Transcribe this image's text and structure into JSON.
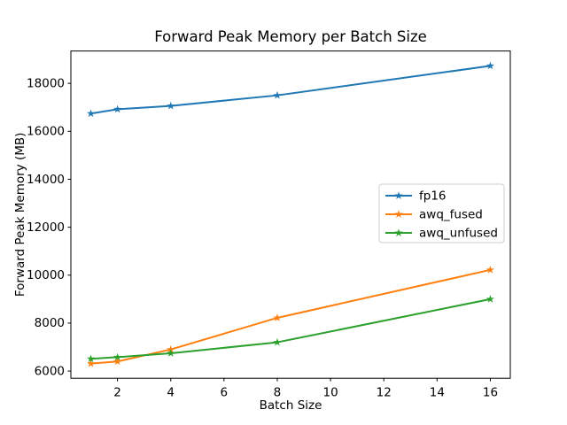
{
  "figure": {
    "background": "#ffffff",
    "title": "Forward Peak Memory per Batch Size"
  },
  "chart_data": {
    "type": "line",
    "title": "Forward Peak Memory per Batch Size",
    "xlabel": "Batch Size",
    "ylabel": "Forward Peak Memory (MB)",
    "x": [
      1,
      2,
      4,
      8,
      16
    ],
    "series": [
      {
        "name": "fp16",
        "color": "#1f77b4",
        "marker": "star",
        "values": [
          16740,
          16920,
          17060,
          17500,
          18730
        ]
      },
      {
        "name": "awq_fused",
        "color": "#ff7f0e",
        "marker": "star",
        "values": [
          6310,
          6400,
          6900,
          8220,
          10220
        ]
      },
      {
        "name": "awq_unfused",
        "color": "#2ca02c",
        "marker": "star",
        "values": [
          6510,
          6580,
          6740,
          7200,
          9000
        ]
      }
    ],
    "xticks": [
      2,
      4,
      6,
      8,
      10,
      12,
      14,
      16
    ],
    "yticks": [
      6000,
      8000,
      10000,
      12000,
      14000,
      16000,
      18000
    ],
    "xlim": [
      0.25,
      16.75
    ],
    "ylim": [
      5700,
      19350
    ],
    "grid": false,
    "legend_position": "center right",
    "legend_entries": [
      "fp16",
      "awq_fused",
      "awq_unfused"
    ],
    "axis_color": "#000000",
    "legend_border_color": "#cccccc"
  }
}
